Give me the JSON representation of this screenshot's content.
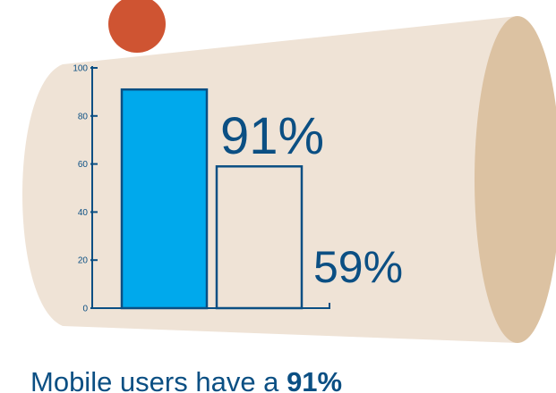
{
  "colors": {
    "cylinder_body": "#efe3d6",
    "cylinder_end": "#dcc2a2",
    "dot": "#cf5432",
    "axis": "#0b4f83",
    "bar_fill": "#00a9ec",
    "bar_outline": "#0b4f83",
    "label": "#0b4f83",
    "caption": "#0b4f83"
  },
  "chart_data": {
    "type": "bar",
    "categories": [
      "",
      ""
    ],
    "values": [
      91,
      59
    ],
    "value_labels": [
      "91%",
      "59%"
    ],
    "bar_styles": [
      "filled",
      "outline"
    ],
    "ylim": [
      0,
      100
    ],
    "yticks": [
      0,
      20,
      40,
      60,
      80,
      100
    ],
    "grid": false,
    "title": "",
    "xlabel": "",
    "ylabel": ""
  },
  "caption": {
    "text": "Mobile users have a",
    "highlight": "91%"
  }
}
